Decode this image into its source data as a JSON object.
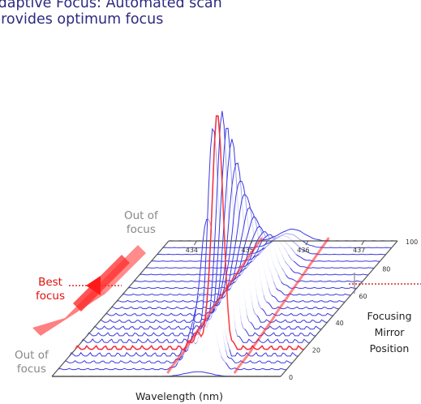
{
  "caption": {
    "line1": "Adaptive Focus: Automated scan",
    "line2": "provides optimum focus"
  },
  "annotations": {
    "out_of_focus_top_1": "Out of",
    "out_of_focus_top_2": "focus",
    "best_focus_1": "Best",
    "best_focus_2": "focus",
    "out_of_focus_bottom_1": "Out of",
    "out_of_focus_bottom_2": "focus"
  },
  "colors": {
    "caption": "#2b2b80",
    "traces": "#3a3ae0",
    "highlight": "#ff3030",
    "arrow": "#ff2b2b",
    "grey_note": "#888888"
  },
  "chart_data": {
    "type": "line",
    "style": "3d-waterfall",
    "title": "",
    "xlabel": "Wavelength (nm)",
    "ylabel": "",
    "zlabel": "Focusing Mirror Position",
    "x_ticks": [
      "434",
      "435",
      "436",
      "437"
    ],
    "z_ticks": [
      "0",
      "20",
      "40",
      "60",
      "80",
      "100"
    ],
    "xlim": [
      433.5,
      437.6
    ],
    "zlim": [
      0,
      100
    ],
    "best_focus_position": 20,
    "series": [
      {
        "z": 0,
        "peak_x": 436.12,
        "peak_height": 0.02
      },
      {
        "z": 5,
        "peak_x": 436.1,
        "peak_height": 0.33
      },
      {
        "z": 10,
        "peak_x": 436.09,
        "peak_height": 0.62
      },
      {
        "z": 15,
        "peak_x": 436.08,
        "peak_height": 0.98
      },
      {
        "z": 20,
        "peak_x": 436.05,
        "peak_height": 1.0
      },
      {
        "z": 25,
        "peak_x": 436.03,
        "peak_height": 0.97
      },
      {
        "z": 30,
        "peak_x": 436.01,
        "peak_height": 0.88
      },
      {
        "z": 35,
        "peak_x": 435.99,
        "peak_height": 0.8
      },
      {
        "z": 40,
        "peak_x": 435.97,
        "peak_height": 0.68
      },
      {
        "z": 45,
        "peak_x": 435.94,
        "peak_height": 0.58
      },
      {
        "z": 50,
        "peak_x": 435.92,
        "peak_height": 0.49
      },
      {
        "z": 55,
        "peak_x": 435.9,
        "peak_height": 0.4
      },
      {
        "z": 60,
        "peak_x": 435.88,
        "peak_height": 0.33
      },
      {
        "z": 65,
        "peak_x": 435.86,
        "peak_height": 0.26
      },
      {
        "z": 70,
        "peak_x": 435.84,
        "peak_height": 0.21
      },
      {
        "z": 75,
        "peak_x": 435.82,
        "peak_height": 0.17
      },
      {
        "z": 80,
        "peak_x": 435.8,
        "peak_height": 0.13
      },
      {
        "z": 85,
        "peak_x": 435.78,
        "peak_height": 0.1
      },
      {
        "z": 90,
        "peak_x": 435.76,
        "peak_height": 0.08
      },
      {
        "z": 95,
        "peak_x": 435.74,
        "peak_height": 0.06
      },
      {
        "z": 100,
        "peak_x": 435.72,
        "peak_height": 0.05
      }
    ]
  }
}
